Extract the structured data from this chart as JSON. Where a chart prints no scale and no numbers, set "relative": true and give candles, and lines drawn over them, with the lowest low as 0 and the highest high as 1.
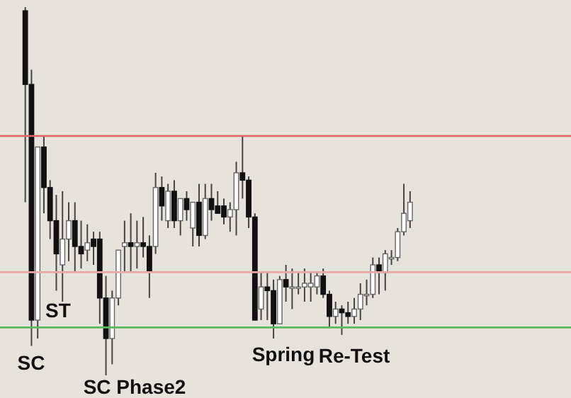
{
  "chart_data": {
    "type": "candlestick",
    "relative": true,
    "categories": [
      null,
      null,
      null,
      null,
      null,
      null,
      null,
      null,
      null,
      null,
      null,
      null,
      null,
      null,
      null,
      null,
      null,
      null,
      null,
      null,
      null,
      null,
      null,
      null,
      null,
      null,
      null,
      null,
      null,
      null,
      null,
      null,
      null,
      null,
      null,
      null,
      null,
      null,
      null,
      null,
      null,
      null,
      null,
      null,
      null,
      null,
      null,
      null,
      null,
      null,
      null,
      null,
      null,
      null,
      null,
      null,
      null,
      null,
      null,
      null,
      null,
      null,
      null
    ],
    "ohlc": [
      [
        0.99,
        1,
        0.47,
        0.79
      ],
      [
        0.79,
        0.83,
        0.08,
        0.15
      ],
      [
        0.15,
        0.62,
        0.1,
        0.62
      ],
      [
        0.62,
        0.65,
        0.44,
        0.51
      ],
      [
        0.51,
        0.53,
        0.37,
        0.42
      ],
      [
        0.42,
        0.49,
        0.23,
        0.33
      ],
      [
        0.3,
        0.5,
        0.2,
        0.37
      ],
      [
        0.37,
        0.47,
        0.31,
        0.42
      ],
      [
        0.42,
        0.47,
        0.28,
        0.35
      ],
      [
        0.35,
        0.42,
        0.29,
        0.33
      ],
      [
        0.34,
        0.41,
        0.31,
        0.36
      ],
      [
        0.37,
        0.39,
        0.3,
        0.35
      ],
      [
        0.37,
        0.39,
        0.14,
        0.21
      ],
      [
        0.21,
        0.27,
        0,
        0.1
      ],
      [
        0.1,
        0.23,
        0.03,
        0.21
      ],
      [
        0.21,
        0.34,
        0.19,
        0.34
      ],
      [
        0.35,
        0.42,
        0.28,
        0.36
      ],
      [
        0.36,
        0.44,
        0.28,
        0.35
      ],
      [
        0.35,
        0.42,
        0.29,
        0.36
      ],
      [
        0.36,
        0.43,
        0.32,
        0.35
      ],
      [
        0.35,
        0.38,
        0.21,
        0.28
      ],
      [
        0.35,
        0.55,
        0.33,
        0.51
      ],
      [
        0.51,
        0.54,
        0.42,
        0.46
      ],
      [
        0.42,
        0.52,
        0.4,
        0.5
      ],
      [
        0.5,
        0.53,
        0.4,
        0.42
      ],
      [
        0.42,
        0.48,
        0.38,
        0.48
      ],
      [
        0.48,
        0.5,
        0.42,
        0.45
      ],
      [
        0.4,
        0.47,
        0.35,
        0.47
      ],
      [
        0.47,
        0.52,
        0.35,
        0.38
      ],
      [
        0.38,
        0.52,
        0.37,
        0.48
      ],
      [
        0.48,
        0.52,
        0.42,
        0.45
      ],
      [
        0.46,
        0.5,
        0.44,
        0.44
      ],
      [
        0.46,
        0.48,
        0.41,
        0.43
      ],
      [
        0.43,
        0.47,
        0.39,
        0.45
      ],
      [
        0.45,
        0.58,
        0.38,
        0.55
      ],
      [
        0.55,
        0.65,
        0.48,
        0.53
      ],
      [
        0.53,
        0.54,
        0.4,
        0.43
      ],
      [
        0.43,
        0.44,
        0.15,
        0.15
      ],
      [
        0.18,
        0.28,
        0.15,
        0.24
      ],
      [
        0.24,
        0.28,
        0.15,
        0.23
      ],
      [
        0.23,
        0.26,
        0.1,
        0.14
      ],
      [
        0.14,
        0.27,
        0.14,
        0.26
      ],
      [
        0.26,
        0.3,
        0.2,
        0.24
      ],
      [
        0.24,
        0.29,
        0.18,
        0.24
      ],
      [
        0.24,
        0.28,
        0.22,
        0.24
      ],
      [
        0.24,
        0.29,
        0.2,
        0.25
      ],
      [
        0.24,
        0.28,
        0.2,
        0.25
      ],
      [
        0.24,
        0.28,
        0.22,
        0.27
      ],
      [
        0.27,
        0.29,
        0.21,
        0.22
      ],
      [
        0.22,
        0.23,
        0.13,
        0.16
      ],
      [
        0.16,
        0.2,
        0.14,
        0.18
      ],
      [
        0.18,
        0.19,
        0.11,
        0.17
      ],
      [
        0.17,
        0.2,
        0.14,
        0.16
      ],
      [
        0.16,
        0.21,
        0.14,
        0.18
      ],
      [
        0.18,
        0.25,
        0.15,
        0.22
      ],
      [
        0.22,
        0.26,
        0.19,
        0.22
      ],
      [
        0.22,
        0.32,
        0.21,
        0.3
      ],
      [
        0.3,
        0.32,
        0.22,
        0.28
      ],
      [
        0.28,
        0.34,
        0.23,
        0.33
      ],
      [
        0.32,
        0.34,
        0.3,
        0.32
      ],
      [
        0.32,
        0.4,
        0.31,
        0.39
      ],
      [
        0.39,
        0.52,
        0.38,
        0.44
      ],
      [
        0.42,
        0.5,
        0.4,
        0.47
      ]
    ],
    "ref_lines": [
      {
        "axis": "y",
        "value": 0.65,
        "color": "#e06666"
      },
      {
        "axis": "y",
        "value": 0.28,
        "color": "#e8a8a8"
      },
      {
        "axis": "y",
        "value": 0.13,
        "color": "#5cb85c"
      }
    ],
    "annotations": [
      "SC",
      "ST",
      "SC Phase2",
      "Spring",
      "Re-Test"
    ]
  }
}
